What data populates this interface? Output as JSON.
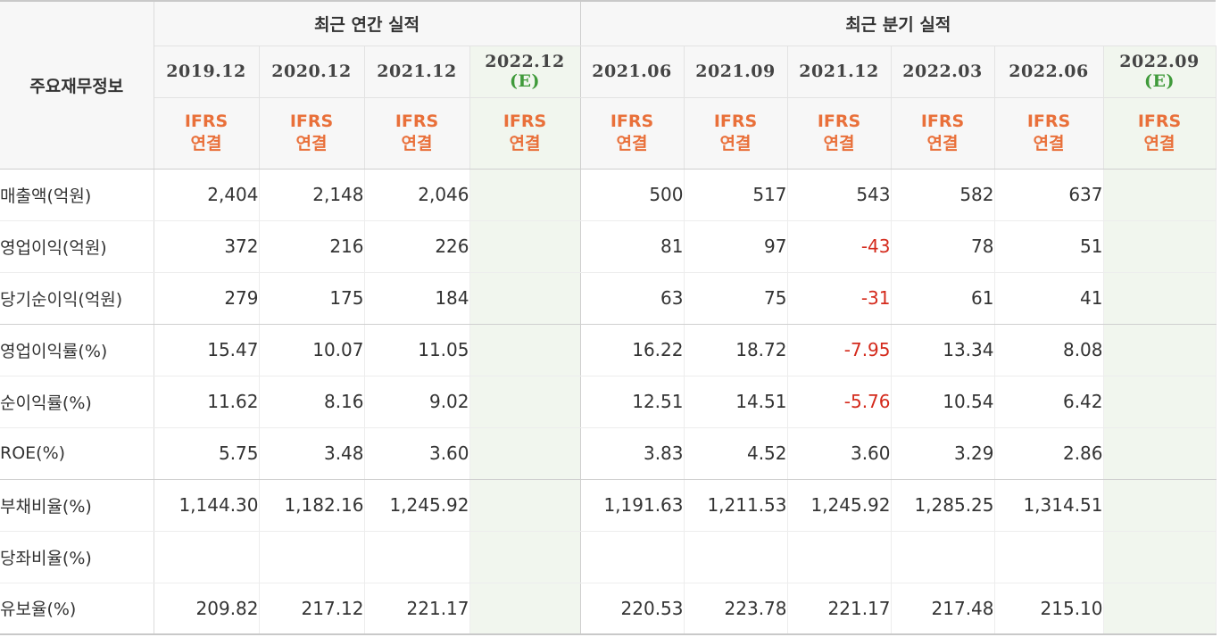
{
  "corner_label": "주요재무정보",
  "groups": {
    "annual": "최근 연간 실적",
    "quarterly": "최근 분기 실적"
  },
  "annual_periods": [
    {
      "period": "2019.12",
      "est": ""
    },
    {
      "period": "2020.12",
      "est": ""
    },
    {
      "period": "2021.12",
      "est": ""
    },
    {
      "period": "2022.12",
      "est": "(E)"
    }
  ],
  "quarterly_periods": [
    {
      "period": "2021.06",
      "est": ""
    },
    {
      "period": "2021.09",
      "est": ""
    },
    {
      "period": "2021.12",
      "est": ""
    },
    {
      "period": "2022.03",
      "est": ""
    },
    {
      "period": "2022.06",
      "est": ""
    },
    {
      "period": "2022.09",
      "est": "(E)"
    }
  ],
  "ifrs_line1": "IFRS",
  "ifrs_line2": "연결",
  "colors": {
    "negative": "#d42a1c",
    "ifrs": "#e9703a",
    "estimate": "#3f9a3a",
    "estimate_bg": "#f1f6ee"
  },
  "rows": [
    {
      "label": "매출액(억원)",
      "annual": [
        "2,404",
        "2,148",
        "2,046",
        ""
      ],
      "quarterly": [
        "500",
        "517",
        "543",
        "582",
        "637",
        ""
      ]
    },
    {
      "label": "영업이익(억원)",
      "annual": [
        "372",
        "216",
        "226",
        ""
      ],
      "quarterly": [
        "81",
        "97",
        "-43",
        "78",
        "51",
        ""
      ]
    },
    {
      "label": "당기순이익(억원)",
      "annual": [
        "279",
        "175",
        "184",
        ""
      ],
      "quarterly": [
        "63",
        "75",
        "-31",
        "61",
        "41",
        ""
      ]
    },
    {
      "label": "영업이익률(%)",
      "annual": [
        "15.47",
        "10.07",
        "11.05",
        ""
      ],
      "quarterly": [
        "16.22",
        "18.72",
        "-7.95",
        "13.34",
        "8.08",
        ""
      ]
    },
    {
      "label": "순이익률(%)",
      "annual": [
        "11.62",
        "8.16",
        "9.02",
        ""
      ],
      "quarterly": [
        "12.51",
        "14.51",
        "-5.76",
        "10.54",
        "6.42",
        ""
      ]
    },
    {
      "label": "ROE(%)",
      "annual": [
        "5.75",
        "3.48",
        "3.60",
        ""
      ],
      "quarterly": [
        "3.83",
        "4.52",
        "3.60",
        "3.29",
        "2.86",
        ""
      ]
    },
    {
      "label": "부채비율(%)",
      "annual": [
        "1,144.30",
        "1,182.16",
        "1,245.92",
        ""
      ],
      "quarterly": [
        "1,191.63",
        "1,211.53",
        "1,245.92",
        "1,285.25",
        "1,314.51",
        ""
      ]
    },
    {
      "label": "당좌비율(%)",
      "annual": [
        "",
        "",
        "",
        ""
      ],
      "quarterly": [
        "",
        "",
        "",
        "",
        "",
        ""
      ]
    },
    {
      "label": "유보율(%)",
      "annual": [
        "209.82",
        "217.12",
        "221.17",
        ""
      ],
      "quarterly": [
        "220.53",
        "223.78",
        "221.17",
        "217.48",
        "215.10",
        ""
      ]
    }
  ]
}
